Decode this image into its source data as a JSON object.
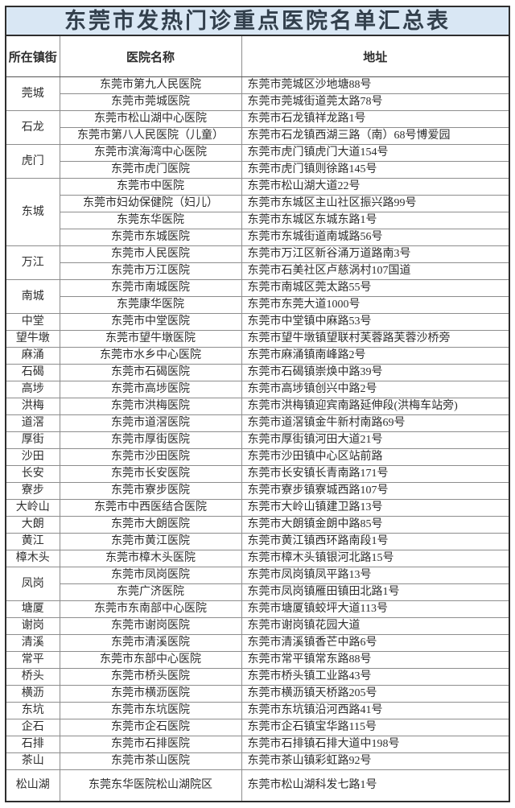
{
  "title": "东莞市发热门诊重点医院名单汇总表",
  "colors": {
    "banner_bg": "#d9e7f4",
    "banner_text": "#323f4c",
    "border_dark": "#2e2e2e",
    "border_light": "#8d8d8d",
    "body_text": "#2e2e2e",
    "page_bg": "#ffffff"
  },
  "table": {
    "headers": [
      "所在镇街",
      "医院名称",
      "地址"
    ],
    "groups": [
      {
        "town": "莞城",
        "rows": [
          {
            "name": "东莞市第九人民医院",
            "address": "东莞市莞城区沙地塘88号"
          },
          {
            "name": "东莞市莞城医院",
            "address": "东莞市莞城街道莞太路78号"
          }
        ]
      },
      {
        "town": "石龙",
        "rows": [
          {
            "name": "东莞市松山湖中心医院",
            "address": "东莞市石龙镇祥龙路1号"
          },
          {
            "name": "东莞市第八人民医院（儿童）",
            "address": "东莞市石龙镇西湖三路（南）68号博爱园"
          }
        ]
      },
      {
        "town": "虎门",
        "rows": [
          {
            "name": "东莞市滨海湾中心医院",
            "address": "东莞市虎门镇虎门大道154号"
          },
          {
            "name": "东莞市虎门医院",
            "address": "东莞市虎门镇则徐路145号"
          }
        ]
      },
      {
        "town": "东城",
        "rows": [
          {
            "name": "东莞市中医院",
            "address": "东莞市松山湖大道22号"
          },
          {
            "name": "东莞市妇幼保健院（妇儿）",
            "address": "东莞市东城区主山社区振兴路99号"
          },
          {
            "name": "东莞东华医院",
            "address": "东莞市东城区东城东路1号"
          },
          {
            "name": "东莞市东城医院",
            "address": "东莞市东城街道南城路56号"
          }
        ]
      },
      {
        "town": "万江",
        "rows": [
          {
            "name": "东莞市人民医院",
            "address": "东莞市万江区新谷涌万道路南3号"
          },
          {
            "name": "东莞市万江医院",
            "address": "东莞市石美社区卢慈涡村107国道"
          }
        ]
      },
      {
        "town": "南城",
        "rows": [
          {
            "name": "东莞市南城医院",
            "address": "东莞市南城区莞太路55号"
          },
          {
            "name": "东莞康华医院",
            "address": "东莞市东莞大道1000号"
          }
        ]
      },
      {
        "town": "中堂",
        "rows": [
          {
            "name": "东莞市中堂医院",
            "address": "东莞市中堂镇中麻路53号"
          }
        ]
      },
      {
        "town": "望牛墩",
        "rows": [
          {
            "name": "东莞市望牛墩医院",
            "address": "东莞市望牛墩镇望联村芙蓉路芙蓉沙桥旁"
          }
        ]
      },
      {
        "town": "麻涌",
        "rows": [
          {
            "name": "东莞市水乡中心医院",
            "address": "东莞市麻涌镇南峰路2号"
          }
        ]
      },
      {
        "town": "石碣",
        "rows": [
          {
            "name": "东莞市石碣医院",
            "address": "东莞市石碣镇崇焕中路39号"
          }
        ]
      },
      {
        "town": "高埗",
        "rows": [
          {
            "name": "东莞市高埗医院",
            "address": "东莞市高埗镇创兴中路2号"
          }
        ]
      },
      {
        "town": "洪梅",
        "rows": [
          {
            "name": "东莞市洪梅医院",
            "address": "东莞市洪梅镇迎宾南路延伸段(洪梅车站旁)"
          }
        ]
      },
      {
        "town": "道滘",
        "rows": [
          {
            "name": "东莞市道滘医院",
            "address": "东莞市道滘镇金牛新村南路69号"
          }
        ]
      },
      {
        "town": "厚街",
        "rows": [
          {
            "name": "东莞市厚街医院",
            "address": "东莞市厚街镇河田大道21号"
          }
        ]
      },
      {
        "town": "沙田",
        "rows": [
          {
            "name": "东莞市沙田医院",
            "address": "东莞市沙田镇中心区站前路"
          }
        ]
      },
      {
        "town": "长安",
        "rows": [
          {
            "name": "东莞市长安医院",
            "address": "东莞市长安镇长青南路171号"
          }
        ]
      },
      {
        "town": "寮步",
        "rows": [
          {
            "name": "东莞市寮步医院",
            "address": "东莞市寮步镇寮城西路107号"
          }
        ]
      },
      {
        "town": "大岭山",
        "rows": [
          {
            "name": "东莞市中西医结合医院",
            "address": "东莞市大岭山镇建卫路13号"
          }
        ]
      },
      {
        "town": "大朗",
        "rows": [
          {
            "name": "东莞市大朗医院",
            "address": "东莞市大朗镇金朗中路85号"
          }
        ]
      },
      {
        "town": "黄江",
        "rows": [
          {
            "name": "东莞市黄江医院",
            "address": "东莞市黄江镇西环路南段1号"
          }
        ]
      },
      {
        "town": "樟木头",
        "rows": [
          {
            "name": "东莞市樟木头医院",
            "address": "东莞市樟木头镇银河北路15号"
          }
        ]
      },
      {
        "town": "凤岗",
        "rows": [
          {
            "name": "东莞市凤岗医院",
            "address": "东莞市凤岗镇凤平路13号"
          },
          {
            "name": "东莞广济医院",
            "address": "东莞市凤岗镇雁田镇田北路1号"
          }
        ]
      },
      {
        "town": "塘厦",
        "rows": [
          {
            "name": "东莞市东南部中心医院",
            "address": "东莞市塘厦镇蛟坪大道113号"
          }
        ]
      },
      {
        "town": "谢岗",
        "rows": [
          {
            "name": "东莞市谢岗医院",
            "address": "东莞市谢岗镇花园大道"
          }
        ]
      },
      {
        "town": "清溪",
        "rows": [
          {
            "name": "东莞市清溪医院",
            "address": "东莞市清溪镇香芒中路6号"
          }
        ]
      },
      {
        "town": "常平",
        "rows": [
          {
            "name": "东莞市东部中心医院",
            "address": "东莞市常平镇常东路88号"
          }
        ]
      },
      {
        "town": "桥头",
        "rows": [
          {
            "name": "东莞市桥头医院",
            "address": "东莞市桥头镇工业路43号"
          }
        ]
      },
      {
        "town": "横沥",
        "rows": [
          {
            "name": "东莞市横沥医院",
            "address": "东莞市横沥镇天桥路205号"
          }
        ]
      },
      {
        "town": "东坑",
        "rows": [
          {
            "name": "东莞市东坑医院",
            "address": "东莞市东坑镇沿河西路41号"
          }
        ]
      },
      {
        "town": "企石",
        "rows": [
          {
            "name": "东莞市企石医院",
            "address": "东莞市企石镇宝华路115号"
          }
        ]
      },
      {
        "town": "石排",
        "rows": [
          {
            "name": "东莞市石排医院",
            "address": "东莞市石排镇石排大道中198号"
          }
        ]
      },
      {
        "town": "茶山",
        "rows": [
          {
            "name": "东莞市茶山医院",
            "address": "东莞市茶山镇彩虹路92号"
          }
        ]
      },
      {
        "town": "松山湖",
        "tall": true,
        "rows": [
          {
            "name": "东莞东华医院松山湖院区",
            "address": "东莞市松山湖科发七路1号"
          }
        ]
      }
    ]
  }
}
